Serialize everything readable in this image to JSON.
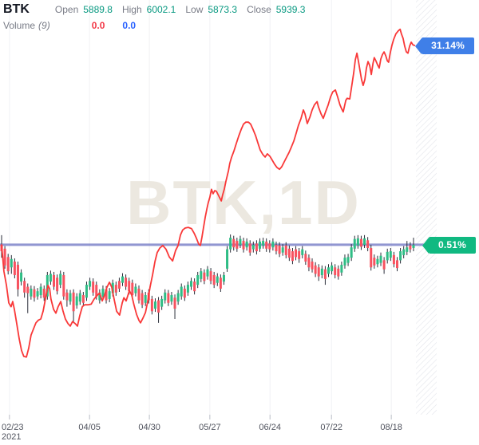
{
  "header": {
    "symbol": "BTK",
    "ohlc": [
      {
        "label": "Open",
        "value": "5889.8"
      },
      {
        "label": "High",
        "value": "6002.1"
      },
      {
        "label": "Low",
        "value": "5873.3"
      },
      {
        "label": "Close",
        "value": "5939.3"
      }
    ],
    "volume_label": "Volume",
    "volume_param": "(9)",
    "volume_values": [
      "0.0",
      "0.0"
    ]
  },
  "badges": {
    "compare_line_badge": "31.14%",
    "candle_close_badge": "0.51%"
  },
  "watermark": "BTK,1D",
  "colors": {
    "up-candle": "#2ebd85",
    "down-candle": "#f7525f",
    "wick": "#2a2e39",
    "compare-line": "#f93838",
    "baseline": "#7e84c9",
    "badge-blue": "#3f7fe8",
    "badge-green": "#10b981",
    "up-text": "#089981",
    "label-gray": "#787b86",
    "vol-red": "#f23645",
    "vol-blue": "#2962ff",
    "gridline": "#f0f1f4",
    "axis-text": "#50535e",
    "tick-mark": "#b8bcc5",
    "watermark-color": "#ece8e0",
    "hatch-line": "#e2e4ea"
  },
  "chart_data": {
    "type": "candlestick+line",
    "symbol": "BTK",
    "interval": "1D",
    "unit": "percent_change_from_period_start",
    "legend": [
      {
        "name": "BTK candles",
        "last_value_pct": 0.51
      },
      {
        "name": "compare line",
        "last_value_pct": 31.14
      }
    ],
    "x_axis": {
      "day_count": 127,
      "ticks": [
        {
          "label": "02/23",
          "sub": "2021",
          "day": 2.4
        },
        {
          "label": "04/05",
          "day": 26.9
        },
        {
          "label": "04/30",
          "day": 45.2
        },
        {
          "label": "05/27",
          "day": 63.7
        },
        {
          "label": "06/24",
          "day": 82.1
        },
        {
          "label": "07/22",
          "day": 100.9
        },
        {
          "label": "08/18",
          "day": 119.2
        }
      ]
    },
    "baseline_pct": 0.51,
    "y_range_pct": [
      -26,
      38
    ],
    "candles_ohlc_pct": [
      [
        0.5,
        2.0,
        -1.5,
        -0.5
      ],
      [
        -0.1,
        0.3,
        -3.2,
        -2.7
      ],
      [
        -1.4,
        -0.9,
        -4.1,
        -3.6
      ],
      [
        -3.0,
        -1.1,
        -4.0,
        -1.7
      ],
      [
        -2.1,
        -1.6,
        -4.7,
        -4.2
      ],
      [
        -2.6,
        -2.1,
        -7.5,
        -6.4
      ],
      [
        -5.2,
        -3.3,
        -5.8,
        -3.8
      ],
      [
        -5.1,
        -4.6,
        -7.7,
        -6.9
      ],
      [
        -6.0,
        -5.5,
        -10.1,
        -7.0
      ],
      [
        -7.5,
        -5.8,
        -8.0,
        -6.3
      ],
      [
        -6.4,
        -5.9,
        -8.3,
        -7.7
      ],
      [
        -7.5,
        -6.2,
        -8.0,
        -6.7
      ],
      [
        -7.3,
        -5.5,
        -7.8,
        -6.0
      ],
      [
        -6.3,
        -5.8,
        -8.2,
        -7.7
      ],
      [
        -7.5,
        -3.7,
        -8.0,
        -4.2
      ],
      [
        -5.2,
        -3.5,
        -5.7,
        -4.0
      ],
      [
        -4.2,
        -3.7,
        -6.5,
        -6.0
      ],
      [
        -4.6,
        -4.1,
        -7.2,
        -6.7
      ],
      [
        -5.7,
        -3.5,
        -6.2,
        -4.0
      ],
      [
        -4.2,
        -3.7,
        -8.0,
        -7.5
      ],
      [
        -6.9,
        -6.4,
        -9.1,
        -8.1
      ],
      [
        -8.3,
        -6.5,
        -8.8,
        -7.0
      ],
      [
        -6.9,
        -6.4,
        -11.6,
        -9.8
      ],
      [
        -8.9,
        -7.0,
        -9.4,
        -7.5
      ],
      [
        -8.3,
        -6.5,
        -8.8,
        -7.0
      ],
      [
        -7.3,
        -6.8,
        -9.0,
        -8.5
      ],
      [
        -7.7,
        -5.2,
        -8.2,
        -5.7
      ],
      [
        -6.0,
        -4.6,
        -6.5,
        -5.1
      ],
      [
        -5.2,
        -4.7,
        -7.4,
        -6.9
      ],
      [
        -5.7,
        -5.2,
        -8.0,
        -7.5
      ],
      [
        -8.1,
        -6.4,
        -8.6,
        -6.9
      ],
      [
        -7.5,
        -5.8,
        -8.0,
        -6.3
      ],
      [
        -6.4,
        -5.9,
        -8.6,
        -8.1
      ],
      [
        -7.9,
        -6.2,
        -8.4,
        -6.7
      ],
      [
        -7.0,
        -4.9,
        -7.5,
        -5.4
      ],
      [
        -5.7,
        -5.2,
        -7.4,
        -6.9
      ],
      [
        -5.1,
        -4.6,
        -6.8,
        -6.3
      ],
      [
        -5.4,
        -3.9,
        -5.9,
        -4.4
      ],
      [
        -4.6,
        -4.1,
        -6.5,
        -6.0
      ],
      [
        -5.1,
        -4.6,
        -7.2,
        -6.7
      ],
      [
        -5.4,
        -4.9,
        -7.8,
        -7.3
      ],
      [
        -7.0,
        -5.5,
        -7.5,
        -6.0
      ],
      [
        -6.3,
        -5.8,
        -8.6,
        -8.1
      ],
      [
        -7.0,
        -6.5,
        -9.3,
        -8.8
      ],
      [
        -8.5,
        -6.8,
        -9.0,
        -7.3
      ],
      [
        -6.9,
        -6.4,
        -8.6,
        -8.1
      ],
      [
        -7.9,
        -7.4,
        -10.3,
        -9.8
      ],
      [
        -9.4,
        -7.8,
        -9.9,
        -8.3
      ],
      [
        -8.1,
        -7.6,
        -11.6,
        -10.0
      ],
      [
        -9.1,
        -7.4,
        -9.6,
        -7.9
      ],
      [
        -8.1,
        -6.4,
        -8.6,
        -6.9
      ],
      [
        -7.0,
        -6.5,
        -9.0,
        -8.5
      ],
      [
        -8.3,
        -6.8,
        -8.8,
        -7.3
      ],
      [
        -7.7,
        -7.2,
        -11.0,
        -9.4
      ],
      [
        -8.3,
        -6.5,
        -8.8,
        -7.0
      ],
      [
        -7.5,
        -5.5,
        -8.0,
        -6.0
      ],
      [
        -6.3,
        -5.8,
        -8.2,
        -7.7
      ],
      [
        -6.9,
        -5.2,
        -7.4,
        -5.7
      ],
      [
        -6.0,
        -4.6,
        -6.5,
        -5.1
      ],
      [
        -5.2,
        -4.7,
        -7.2,
        -6.7
      ],
      [
        -5.7,
        -3.7,
        -6.2,
        -4.2
      ],
      [
        -4.8,
        -3.1,
        -5.3,
        -3.6
      ],
      [
        -3.8,
        -3.3,
        -5.6,
        -5.1
      ],
      [
        -4.4,
        -2.8,
        -4.9,
        -3.3
      ],
      [
        -3.6,
        -3.1,
        -5.6,
        -5.1
      ],
      [
        -4.2,
        -3.7,
        -6.2,
        -5.7
      ],
      [
        -5.4,
        -3.9,
        -5.9,
        -4.4
      ],
      [
        -4.6,
        -4.1,
        -6.8,
        -6.3
      ],
      [
        -5.2,
        -3.7,
        -5.7,
        -4.2
      ],
      [
        -3.2,
        0.3,
        -3.7,
        -0.2
      ],
      [
        -0.2,
        2.1,
        -0.7,
        1.6
      ],
      [
        1.4,
        1.9,
        -0.4,
        0.1
      ],
      [
        1.1,
        1.6,
        -0.6,
        -0.1
      ],
      [
        0.5,
        1.9,
        0.0,
        1.4
      ],
      [
        1.1,
        1.6,
        -0.7,
        -0.2
      ],
      [
        0.1,
        1.5,
        -0.4,
        1.0
      ],
      [
        0.7,
        1.2,
        -1.2,
        -0.7
      ],
      [
        -0.2,
        1.0,
        -0.7,
        0.5
      ],
      [
        0.7,
        1.2,
        -1.0,
        -0.5
      ],
      [
        -0.1,
        1.5,
        -0.6,
        1.0
      ],
      [
        0.4,
        1.6,
        -0.1,
        1.1
      ],
      [
        1.0,
        1.5,
        -0.6,
        -0.1
      ],
      [
        0.7,
        1.2,
        -0.7,
        -0.2
      ],
      [
        0.1,
        1.5,
        -0.4,
        1.0
      ],
      [
        0.5,
        1.0,
        -1.0,
        -0.5
      ],
      [
        0.4,
        0.9,
        -1.4,
        -0.9
      ],
      [
        -0.7,
        0.6,
        -1.2,
        0.1
      ],
      [
        0.4,
        0.9,
        -1.6,
        -1.1
      ],
      [
        -0.1,
        0.4,
        -2.0,
        -1.5
      ],
      [
        -0.5,
        0.0,
        -2.5,
        -2.0
      ],
      [
        -0.2,
        0.3,
        -1.9,
        -1.4
      ],
      [
        -0.5,
        0.0,
        -2.3,
        -1.7
      ],
      [
        -1.1,
        0.3,
        -1.6,
        -0.2
      ],
      [
        -0.9,
        -0.4,
        -2.6,
        -2.1
      ],
      [
        -1.5,
        -1.0,
        -3.6,
        -3.0
      ],
      [
        -2.1,
        -1.6,
        -3.8,
        -3.3
      ],
      [
        -2.7,
        -2.2,
        -4.5,
        -4.0
      ],
      [
        -3.0,
        -2.5,
        -5.1,
        -4.4
      ],
      [
        -4.2,
        -2.7,
        -4.7,
        -3.2
      ],
      [
        -3.3,
        -2.8,
        -5.7,
        -4.8
      ],
      [
        -4.0,
        -2.5,
        -4.5,
        -3.0
      ],
      [
        -3.6,
        -2.2,
        -4.1,
        -2.7
      ],
      [
        -3.0,
        -2.5,
        -4.7,
        -4.2
      ],
      [
        -3.2,
        -2.7,
        -4.9,
        -4.4
      ],
      [
        -3.8,
        -2.1,
        -4.3,
        -2.6
      ],
      [
        -2.7,
        -1.0,
        -3.2,
        -1.5
      ],
      [
        -2.3,
        -0.9,
        -2.8,
        -1.4
      ],
      [
        -1.5,
        0.6,
        -2.0,
        0.1
      ],
      [
        -0.1,
        1.9,
        -0.6,
        1.4
      ],
      [
        0.4,
        2.0,
        -0.1,
        1.5
      ],
      [
        1.4,
        1.9,
        -0.3,
        0.2
      ],
      [
        0.5,
        2.0,
        0.0,
        1.5
      ],
      [
        1.2,
        1.7,
        -0.5,
        0.0
      ],
      [
        0.0,
        0.5,
        -3.5,
        -3.0
      ],
      [
        -1.5,
        -1.0,
        -3.2,
        -2.7
      ],
      [
        -2.5,
        -1.2,
        -3.0,
        -1.7
      ],
      [
        -2.3,
        -0.7,
        -2.8,
        -1.2
      ],
      [
        -1.9,
        -1.4,
        -4.0,
        -3.3
      ],
      [
        -1.9,
        -0.1,
        -2.4,
        -0.6
      ],
      [
        -1.5,
        0.0,
        -2.0,
        -0.5
      ],
      [
        -1.1,
        -0.6,
        -3.0,
        -2.5
      ],
      [
        -1.9,
        -1.4,
        -3.6,
        -3.1
      ],
      [
        -1.9,
        0.0,
        -2.4,
        -0.5
      ],
      [
        -1.1,
        0.3,
        -1.6,
        -0.2
      ],
      [
        -0.6,
        1.1,
        -1.1,
        0.1
      ],
      [
        0.4,
        0.9,
        -0.7,
        -0.2
      ],
      [
        0.0,
        1.6,
        -0.5,
        0.5
      ]
    ],
    "compare_line_points_day_pct": [
      [
        0,
        0.5
      ],
      [
        0.7,
        -3.6
      ],
      [
        1.5,
        -5.8
      ],
      [
        2.2,
        -8.5
      ],
      [
        2.9,
        -9.1
      ],
      [
        3.4,
        -8.3
      ],
      [
        3.9,
        -9.5
      ],
      [
        4.6,
        -11.6
      ],
      [
        5.4,
        -14.1
      ],
      [
        6.1,
        -15.9
      ],
      [
        6.8,
        -16.8
      ],
      [
        7.6,
        -16.9
      ],
      [
        8.3,
        -15.5
      ],
      [
        9,
        -13.5
      ],
      [
        9.8,
        -12.5
      ],
      [
        10.5,
        -11.6
      ],
      [
        11.2,
        -11.2
      ],
      [
        12,
        -11
      ],
      [
        12.7,
        -9.8
      ],
      [
        13.4,
        -7.9
      ],
      [
        14.2,
        -5.8
      ],
      [
        14.7,
        -6.3
      ],
      [
        15.1,
        -7.9
      ],
      [
        15.9,
        -9.5
      ],
      [
        16.6,
        -10.1
      ],
      [
        17.3,
        -9.1
      ],
      [
        18.1,
        -8.3
      ],
      [
        18.8,
        -9.8
      ],
      [
        19.5,
        -11
      ],
      [
        20.3,
        -11.7
      ],
      [
        21,
        -12.1
      ],
      [
        21.7,
        -11.4
      ],
      [
        22.5,
        -11.7
      ],
      [
        23.2,
        -12.1
      ],
      [
        23.9,
        -10.5
      ],
      [
        24.7,
        -9.1
      ],
      [
        25.4,
        -8.8
      ],
      [
        26.4,
        -8.8
      ],
      [
        27.4,
        -8.7
      ],
      [
        28.3,
        -7.9
      ],
      [
        29.3,
        -7.3
      ],
      [
        30,
        -7
      ],
      [
        30.8,
        -8.2
      ],
      [
        31.5,
        -7.3
      ],
      [
        32.2,
        -6.1
      ],
      [
        33,
        -5.3
      ],
      [
        33.7,
        -6.1
      ],
      [
        34.4,
        -7.9
      ],
      [
        35.2,
        -9.8
      ],
      [
        36.1,
        -10.4
      ],
      [
        36.9,
        -8.5
      ],
      [
        37.4,
        -7.7
      ],
      [
        38.1,
        -8.2
      ],
      [
        39.1,
        -6.6
      ],
      [
        39.8,
        -7.3
      ],
      [
        40.5,
        -8.8
      ],
      [
        41.3,
        -10.3
      ],
      [
        42,
        -11.2
      ],
      [
        42.5,
        -11.6
      ],
      [
        43.2,
        -10.9
      ],
      [
        44,
        -10
      ],
      [
        44.7,
        -8.3
      ],
      [
        45.4,
        -6.1
      ],
      [
        46.2,
        -4.1
      ],
      [
        46.9,
        -2.1
      ],
      [
        47.6,
        -0.7
      ],
      [
        48.4,
        0
      ],
      [
        49.3,
        0.4
      ],
      [
        50.3,
        -0.2
      ],
      [
        51.3,
        -1.4
      ],
      [
        52.3,
        -2
      ],
      [
        53.2,
        -0.4
      ],
      [
        54,
        0.4
      ],
      [
        54.7,
        2
      ],
      [
        55.4,
        2.8
      ],
      [
        56.2,
        3.1
      ],
      [
        57.1,
        3.2
      ],
      [
        58.1,
        3
      ],
      [
        58.9,
        2.3
      ],
      [
        59.6,
        1.5
      ],
      [
        60.3,
        0.6
      ],
      [
        60.8,
        0.4
      ],
      [
        61.3,
        1.7
      ],
      [
        61.8,
        3.3
      ],
      [
        62.3,
        4.8
      ],
      [
        62.8,
        6.1
      ],
      [
        63.2,
        7
      ],
      [
        63.7,
        7.9
      ],
      [
        64.2,
        9.1
      ],
      [
        64.7,
        8.4
      ],
      [
        65.2,
        8.9
      ],
      [
        65.7,
        8.8
      ],
      [
        66.2,
        8.3
      ],
      [
        66.7,
        7.8
      ],
      [
        67.2,
        7.3
      ],
      [
        67.6,
        8.2
      ],
      [
        68.1,
        9.1
      ],
      [
        68.6,
        10.3
      ],
      [
        69.4,
        12
      ],
      [
        69.8,
        13.1
      ],
      [
        70.3,
        14
      ],
      [
        71.1,
        15.1
      ],
      [
        71.8,
        16.2
      ],
      [
        72.5,
        17.3
      ],
      [
        73.3,
        18.4
      ],
      [
        74,
        19.2
      ],
      [
        74.7,
        19.5
      ],
      [
        75.5,
        19.5
      ],
      [
        76.2,
        19.2
      ],
      [
        76.9,
        18.4
      ],
      [
        77.7,
        17.4
      ],
      [
        78.4,
        16.3
      ],
      [
        79.1,
        15.2
      ],
      [
        79.9,
        14.5
      ],
      [
        80.6,
        14.1
      ],
      [
        81.3,
        14.6
      ],
      [
        82.1,
        14.2
      ],
      [
        82.8,
        13.6
      ],
      [
        83.5,
        13
      ],
      [
        84.2,
        12.5
      ],
      [
        85,
        12.2
      ],
      [
        85.7,
        12.6
      ],
      [
        86.4,
        13.3
      ],
      [
        87.2,
        14.1
      ],
      [
        87.9,
        14.8
      ],
      [
        88.6,
        15.6
      ],
      [
        89.4,
        16.6
      ],
      [
        90.1,
        17.8
      ],
      [
        90.8,
        19
      ],
      [
        91.6,
        20.1
      ],
      [
        92.3,
        21.4
      ],
      [
        92.8,
        20.8
      ],
      [
        93.5,
        19.3
      ],
      [
        94.3,
        20.3
      ],
      [
        95,
        21.4
      ],
      [
        95.7,
        22.2
      ],
      [
        96.5,
        22.7
      ],
      [
        96.9,
        21.9
      ],
      [
        97.7,
        20.8
      ],
      [
        98.4,
        20.1
      ],
      [
        99.1,
        21.1
      ],
      [
        99.9,
        22.2
      ],
      [
        100.6,
        23.4
      ],
      [
        101.3,
        24.2
      ],
      [
        102.1,
        24.5
      ],
      [
        102.8,
        23.4
      ],
      [
        103.5,
        22.2
      ],
      [
        104,
        21.6
      ],
      [
        104.5,
        21.1
      ],
      [
        105.3,
        22.9
      ],
      [
        105.7,
        23.2
      ],
      [
        106.5,
        23.1
      ],
      [
        107,
        24.8
      ],
      [
        107.7,
        27.1
      ],
      [
        108.2,
        29.2
      ],
      [
        108.7,
        30.2
      ],
      [
        109.2,
        28.8
      ],
      [
        109.6,
        27.6
      ],
      [
        110.1,
        26.1
      ],
      [
        110.6,
        25.2
      ],
      [
        111.1,
        26.1
      ],
      [
        111.6,
        27.9
      ],
      [
        112.1,
        28.9
      ],
      [
        112.6,
        28.3
      ],
      [
        113.1,
        26.9
      ],
      [
        113.6,
        28.6
      ],
      [
        114,
        29.5
      ],
      [
        114.5,
        29
      ],
      [
        115,
        28.4
      ],
      [
        115.5,
        27.9
      ],
      [
        116,
        29.3
      ],
      [
        116.5,
        30
      ],
      [
        117,
        30.4
      ],
      [
        117.5,
        29.8
      ],
      [
        118,
        29
      ],
      [
        118.4,
        28.8
      ],
      [
        118.9,
        30.3
      ],
      [
        119.4,
        31.4
      ],
      [
        119.9,
        32.3
      ],
      [
        120.6,
        33.2
      ],
      [
        121.4,
        33.7
      ],
      [
        121.9,
        33.9
      ],
      [
        122.3,
        33.2
      ],
      [
        122.8,
        32.5
      ],
      [
        123.3,
        31.3
      ],
      [
        123.8,
        30.4
      ],
      [
        124.3,
        30.2
      ],
      [
        124.8,
        31.3
      ],
      [
        125.3,
        31.9
      ],
      [
        125.8,
        31.5
      ],
      [
        126.3,
        31.4
      ]
    ]
  }
}
